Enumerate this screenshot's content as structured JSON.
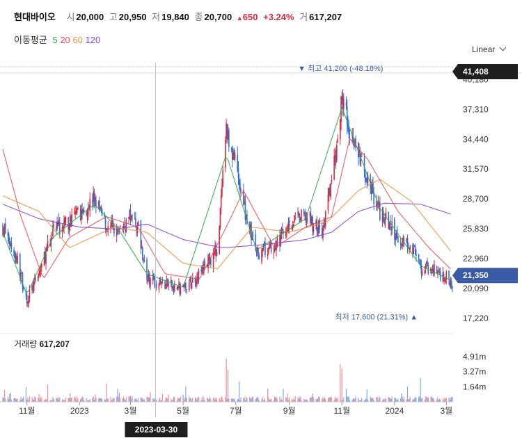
{
  "header": {
    "name": "현대바이오",
    "open_label": "시",
    "open": "20,000",
    "high_label": "고",
    "high": "20,950",
    "low_label": "저",
    "low": "19,840",
    "close_label": "종",
    "close": "20,700",
    "change": "650",
    "change_pct": "+3.24%",
    "volume_label": "거",
    "volume": "617,207"
  },
  "ma_legend": {
    "title": "이동평균",
    "periods": [
      "5",
      "20",
      "60",
      "120"
    ],
    "colors": [
      "#2ba84a",
      "#ea4c56",
      "#f0913a",
      "#8a3fd8"
    ]
  },
  "scale_mode": "Linear",
  "volume_panel": {
    "title": "거래량",
    "value": "617,207"
  },
  "colors": {
    "up": "#d6293b",
    "down": "#2f6fd6",
    "crosshair_tag": "#1e1e1e",
    "current_tag": "#3b5aa6"
  },
  "chart_data": {
    "type": "candlestick",
    "price_ticks": [
      "40,180",
      "37,310",
      "34,440",
      "31,570",
      "28,700",
      "25,830",
      "22,960",
      "20,090",
      "17,220"
    ],
    "price_tick_values": [
      40180,
      37310,
      34440,
      31570,
      28700,
      25830,
      22960,
      20090,
      17220
    ],
    "volume_ticks": [
      "4.91m",
      "3.27m",
      "1.64m"
    ],
    "volume_tick_values": [
      4.91,
      3.27,
      1.64
    ],
    "x_ticks": [
      "11월",
      "2023",
      "3월",
      "5월",
      "7월",
      "9월",
      "11월",
      "2024",
      "3월"
    ],
    "x_tick_dates": [
      "2022-11-01",
      "2023-01-01",
      "2023-03-01",
      "2023-05-01",
      "2023-07-01",
      "2023-09-01",
      "2023-11-01",
      "2024-01-01",
      "2024-03-01"
    ],
    "date_range": [
      "2022-10-04",
      "2024-03-08"
    ],
    "crosshair": {
      "date": "2023-03-30",
      "price_label": "41,408",
      "price": 41408
    },
    "current_price": {
      "label": "21,350",
      "value": 21350
    },
    "highest": {
      "label": "최고",
      "value": "41,200 (-48.18%)",
      "price": 41200,
      "date": "2023-11-01"
    },
    "lowest": {
      "label": "최저",
      "value": "17,600 (21.31%)",
      "price": 17600,
      "date": "2024-01-31"
    },
    "price_anchors": [
      [
        "2022-10-04",
        26000
      ],
      [
        "2022-10-20",
        23000
      ],
      [
        "2022-11-01",
        19000
      ],
      [
        "2022-11-15",
        21500
      ],
      [
        "2022-12-01",
        25500
      ],
      [
        "2022-12-20",
        26500
      ],
      [
        "2023-01-05",
        27500
      ],
      [
        "2023-01-18",
        28800
      ],
      [
        "2023-02-01",
        26000
      ],
      [
        "2023-02-15",
        25500
      ],
      [
        "2023-03-01",
        27000
      ],
      [
        "2023-03-10",
        26000
      ],
      [
        "2023-03-20",
        21000
      ],
      [
        "2023-04-10",
        20500
      ],
      [
        "2023-05-01",
        20000
      ],
      [
        "2023-05-20",
        21500
      ],
      [
        "2023-06-10",
        24000
      ],
      [
        "2023-06-20",
        35000
      ],
      [
        "2023-06-28",
        33000
      ],
      [
        "2023-07-10",
        28000
      ],
      [
        "2023-07-25",
        23500
      ],
      [
        "2023-08-15",
        24000
      ],
      [
        "2023-09-01",
        26500
      ],
      [
        "2023-09-20",
        27000
      ],
      [
        "2023-10-10",
        25500
      ],
      [
        "2023-10-25",
        33000
      ],
      [
        "2023-11-01",
        38500
      ],
      [
        "2023-11-15",
        34000
      ],
      [
        "2023-12-01",
        30500
      ],
      [
        "2023-12-15",
        27500
      ],
      [
        "2024-01-05",
        25000
      ],
      [
        "2024-01-20",
        24500
      ],
      [
        "2024-01-31",
        22000
      ],
      [
        "2024-02-15",
        22000
      ],
      [
        "2024-03-08",
        20700
      ]
    ],
    "ma5_anchors": [
      [
        "2022-10-04",
        25500
      ],
      [
        "2022-11-01",
        19500
      ],
      [
        "2022-12-01",
        25000
      ],
      [
        "2023-01-18",
        28200
      ],
      [
        "2023-02-15",
        25800
      ],
      [
        "2023-03-20",
        21500
      ],
      [
        "2023-05-01",
        20200
      ],
      [
        "2023-06-20",
        33000
      ],
      [
        "2023-07-25",
        23800
      ],
      [
        "2023-09-20",
        26800
      ],
      [
        "2023-11-01",
        37500
      ],
      [
        "2023-12-15",
        27800
      ],
      [
        "2024-01-31",
        22300
      ],
      [
        "2024-03-08",
        20800
      ]
    ],
    "ma20_anchors": [
      [
        "2022-10-04",
        33500
      ],
      [
        "2022-10-25",
        27000
      ],
      [
        "2022-11-20",
        21000
      ],
      [
        "2022-12-20",
        25000
      ],
      [
        "2023-02-01",
        27000
      ],
      [
        "2023-03-10",
        26000
      ],
      [
        "2023-04-10",
        21500
      ],
      [
        "2023-05-20",
        21000
      ],
      [
        "2023-06-20",
        26000
      ],
      [
        "2023-07-10",
        29500
      ],
      [
        "2023-08-15",
        24000
      ],
      [
        "2023-09-20",
        26000
      ],
      [
        "2023-10-20",
        27000
      ],
      [
        "2023-11-10",
        34500
      ],
      [
        "2023-12-01",
        32500
      ],
      [
        "2024-01-05",
        27500
      ],
      [
        "2024-02-10",
        24000
      ],
      [
        "2024-03-08",
        21800
      ]
    ],
    "ma60_anchors": [
      [
        "2022-10-04",
        29000
      ],
      [
        "2022-11-15",
        27500
      ],
      [
        "2022-12-20",
        24000
      ],
      [
        "2023-02-10",
        26000
      ],
      [
        "2023-03-20",
        25500
      ],
      [
        "2023-05-01",
        22500
      ],
      [
        "2023-06-10",
        22000
      ],
      [
        "2023-07-20",
        26000
      ],
      [
        "2023-09-01",
        25500
      ],
      [
        "2023-10-15",
        26500
      ],
      [
        "2023-11-20",
        29500
      ],
      [
        "2023-12-15",
        30600
      ],
      [
        "2024-01-20",
        28500
      ],
      [
        "2024-03-08",
        23500
      ]
    ],
    "ma120_anchors": [
      [
        "2022-10-04",
        28200
      ],
      [
        "2022-11-15",
        26800
      ],
      [
        "2023-01-01",
        26000
      ],
      [
        "2023-02-15",
        25800
      ],
      [
        "2023-03-20",
        26300
      ],
      [
        "2023-05-01",
        24800
      ],
      [
        "2023-06-15",
        24000
      ],
      [
        "2023-08-01",
        24300
      ],
      [
        "2023-09-20",
        24800
      ],
      [
        "2023-10-20",
        25500
      ],
      [
        "2023-11-20",
        27500
      ],
      [
        "2023-12-20",
        28300
      ],
      [
        "2024-01-31",
        28200
      ],
      [
        "2024-03-08",
        27200
      ]
    ],
    "volume_spikes": [
      [
        "2023-06-20",
        4.7
      ],
      [
        "2023-06-22",
        3.5
      ],
      [
        "2023-08-20",
        4.3
      ],
      [
        "2023-10-30",
        4.1
      ],
      [
        "2023-11-01",
        3.6
      ],
      [
        "2023-07-05",
        2.2
      ],
      [
        "2023-02-01",
        2.0
      ],
      [
        "2024-01-31",
        2.6
      ],
      [
        "2023-12-10",
        2.3
      ],
      [
        "2023-01-15",
        1.8
      ],
      [
        "2022-11-25",
        1.9
      ]
    ]
  }
}
